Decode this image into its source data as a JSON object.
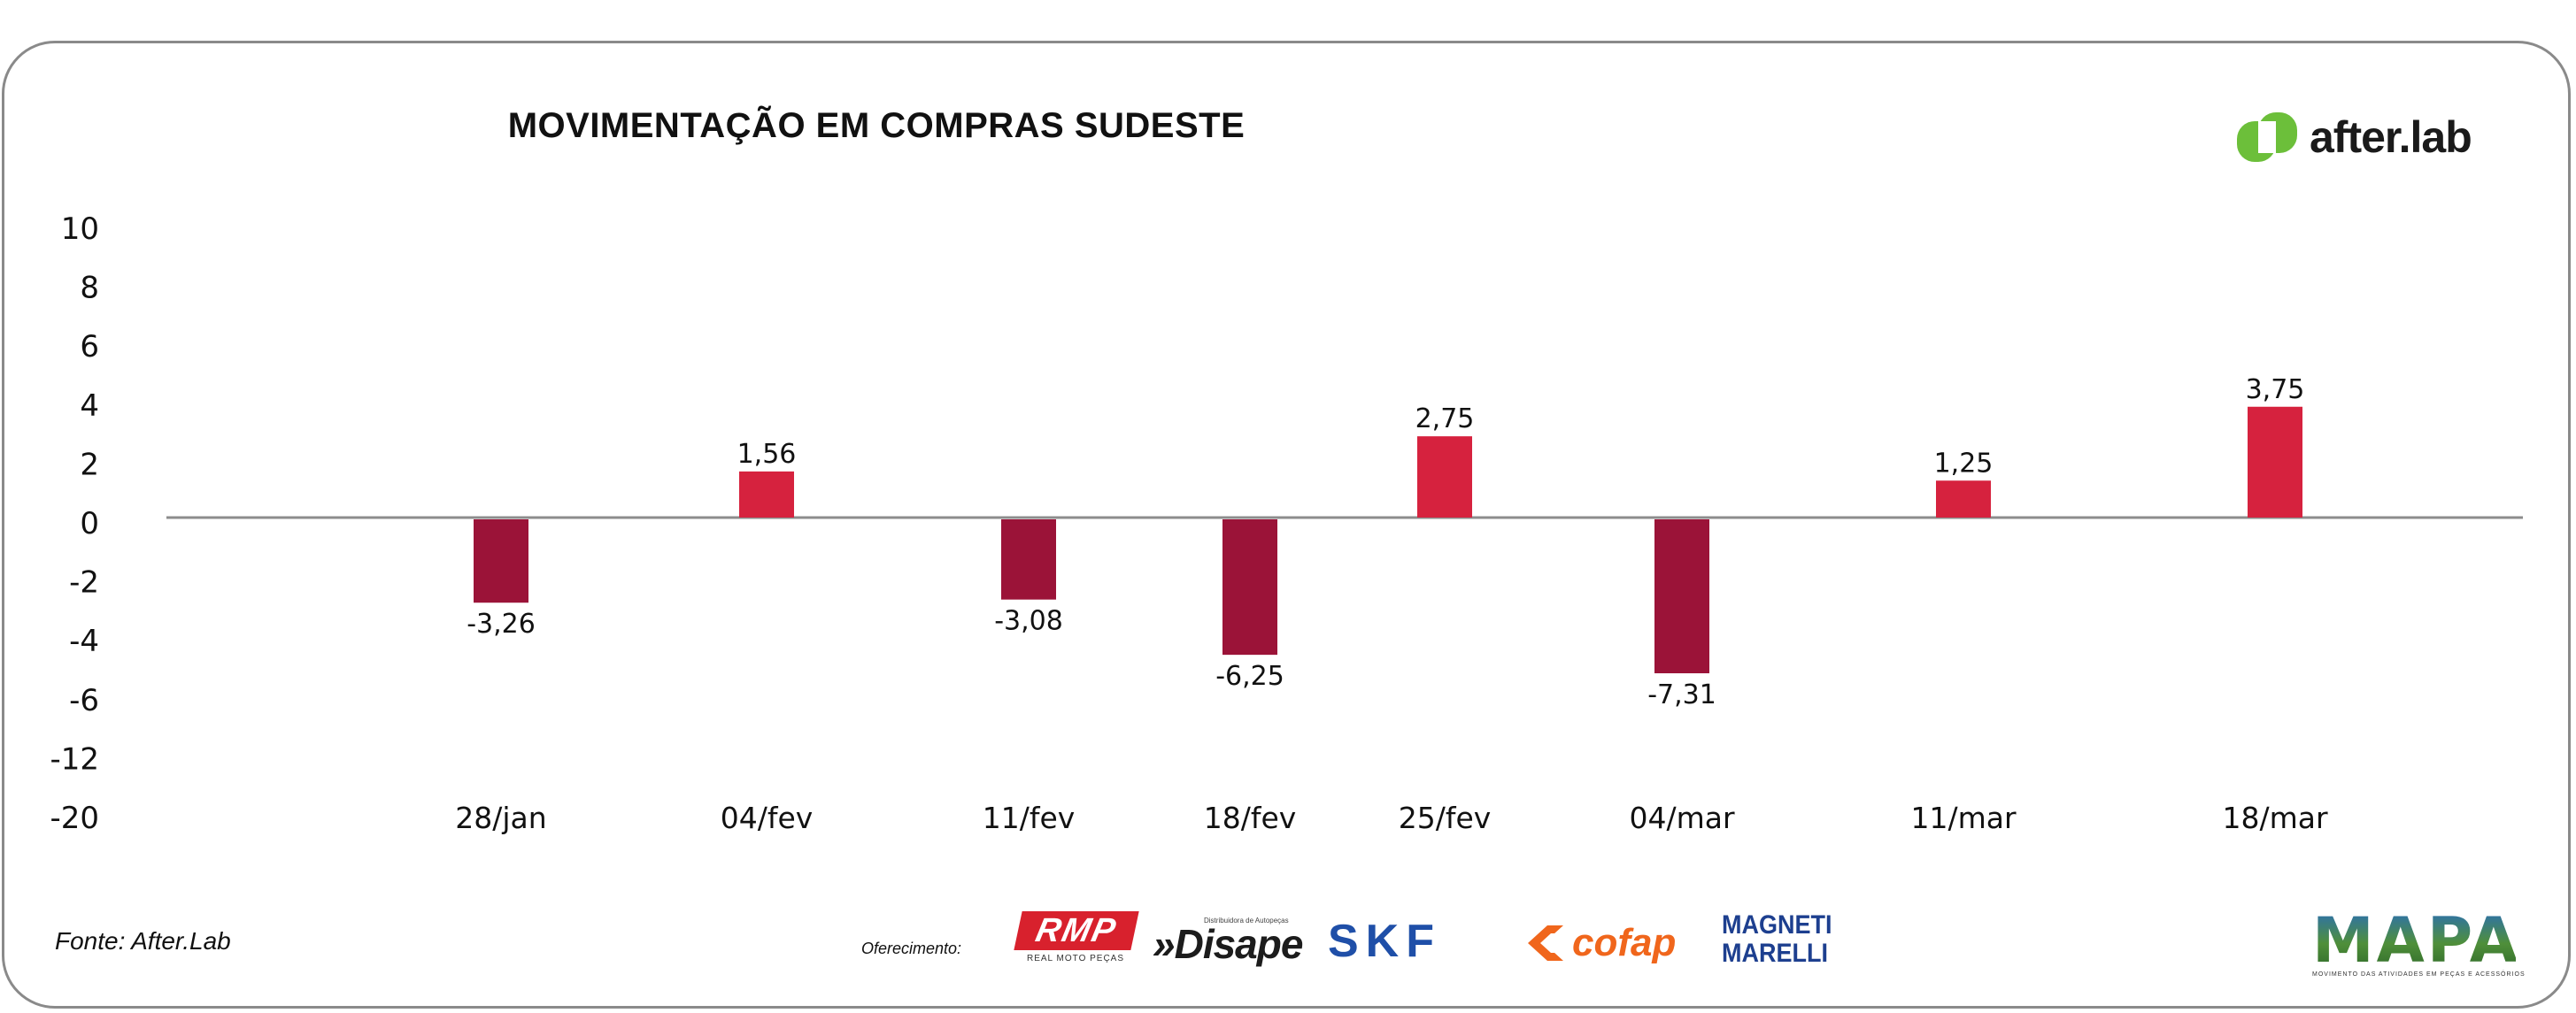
{
  "title": "MOVIMENTAÇÃO EM COMPRAS SUDESTE",
  "brand": {
    "name": "after.lab",
    "color": "#6cbf3a"
  },
  "source": "Fonte: After.Lab",
  "sponsors": {
    "label": "Oferecimento:",
    "rmp": {
      "name": "RMP",
      "sub": "REAL MOTO PEÇAS",
      "color": "#d8212d"
    },
    "disape": {
      "name": "Disape",
      "sub": "Distribuidora de Autopeças"
    },
    "skf": {
      "name": "SKF",
      "color": "#1f4fa8"
    },
    "cofap": {
      "name": "cofap",
      "color": "#f0661c"
    },
    "magneti": {
      "line1": "MAGNETI",
      "line2": "MARELLI",
      "color": "#1d3f8f"
    }
  },
  "mapa": {
    "name": "MAPA",
    "sub": "MOVIMENTO DAS ATIVIDADES EM PEÇAS E ACESSÓRIOS"
  },
  "chart_data": {
    "type": "bar",
    "title": "MOVIMENTAÇÃO EM COMPRAS SUDESTE",
    "categories": [
      "28/jan",
      "04/fev",
      "11/fev",
      "18/fev",
      "25/fev",
      "04/mar",
      "11/mar",
      "18/mar"
    ],
    "values": [
      -3.26,
      1.56,
      -3.08,
      -6.25,
      2.75,
      -7.31,
      1.25,
      3.75
    ],
    "value_labels": [
      "-3,26",
      "1,56",
      "-3,08",
      "-6,25",
      "2,75",
      "-7,31",
      "1,25",
      "3,75"
    ],
    "y_ticks": [
      "10",
      "8",
      "6",
      "4",
      "2",
      "0",
      "-2",
      "-4",
      "-6",
      "-12",
      "-20"
    ],
    "colors": {
      "positive": "#d6223e",
      "negative": "#9b1338",
      "zero_line": "#8c8c8c"
    },
    "grid": false,
    "legend": "none"
  }
}
